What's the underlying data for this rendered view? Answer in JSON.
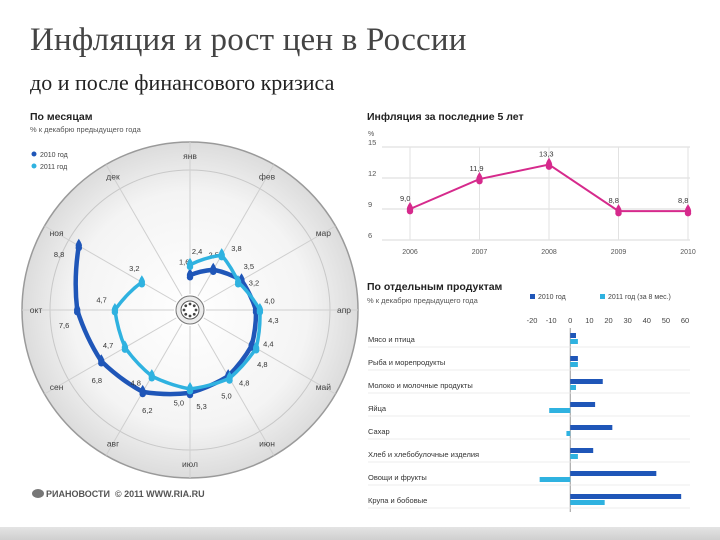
{
  "title": "Инфляция и рост цен в России",
  "subtitle": "до и после финансового кризиса",
  "footer": {
    "brand": "РИАНОВОСТИ",
    "copyright": "© 2011 WWW.RIA.RU"
  },
  "colors": {
    "s2010": "#1f56b8",
    "s2011": "#2fb2e0",
    "line5": "#d62a8c",
    "grid": "#cccccc"
  },
  "chart_data": [
    {
      "type": "radial-line",
      "title": "По месяцам",
      "subtitle": "% к декабрю предыдущего года",
      "months": [
        "янв",
        "фев",
        "мар",
        "апр",
        "май",
        "июн",
        "июл",
        "авг",
        "сен",
        "окт",
        "ноя",
        "дек"
      ],
      "series": [
        {
          "name": "2010 год",
          "values": [
            1.6,
            2.5,
            3.5,
            4.0,
            4.4,
            4.8,
            5.3,
            6.2,
            6.8,
            7.6,
            8.8,
            null
          ],
          "labels": [
            "1,6",
            "2,5",
            "3,5",
            "4,0",
            "4,4",
            "4,8",
            "5,3",
            "6,2",
            "6,8",
            "7,6",
            "8,8",
            ""
          ]
        },
        {
          "name": "2011 год",
          "values": [
            2.4,
            3.8,
            3.2,
            4.3,
            4.8,
            5.0,
            5.0,
            4.8,
            4.7,
            4.7,
            3.2,
            null
          ],
          "labels": [
            "2,4",
            "3,8",
            "3,2",
            "4,3",
            "4,8",
            "5,0",
            "5,0",
            "4,8",
            "4,7",
            "4,7",
            "3,2",
            ""
          ]
        }
      ],
      "legend": "top-left"
    },
    {
      "type": "line",
      "title": "Инфляция за последние 5 лет",
      "ylabel": "%",
      "x": [
        "2006",
        "2007",
        "2008",
        "2009",
        "2010"
      ],
      "values": [
        9.0,
        11.9,
        13.3,
        8.8,
        8.8
      ],
      "labels": [
        "9,0",
        "11,9",
        "13,3",
        "8,8",
        "8,8"
      ],
      "yticks": [
        "6",
        "9",
        "12",
        "15"
      ],
      "ylim": [
        6,
        15
      ]
    },
    {
      "type": "bar",
      "orientation": "horizontal",
      "title": "По отдельным продуктам",
      "subtitle": "% к декабрю предыдущего года",
      "categories": [
        "Мясо и птица",
        "Рыба и морепродукты",
        "Молоко и молочные продукты",
        "Яйца",
        "Сахар",
        "Хлеб и хлебобулочные изделия",
        "Овощи и фрукты",
        "Крупа и бобовые"
      ],
      "series": [
        {
          "name": "2010 год",
          "values": [
            3,
            4,
            17,
            13,
            22,
            12,
            45,
            58
          ]
        },
        {
          "name": "2011 год (за 8 мес.)",
          "values": [
            4,
            4,
            3,
            -11,
            -2,
            4,
            -16,
            18
          ]
        }
      ],
      "xticks": [
        "-20",
        "-10",
        "0",
        "10",
        "20",
        "30",
        "40",
        "50",
        "60"
      ],
      "xlim": [
        -20,
        60
      ]
    }
  ]
}
